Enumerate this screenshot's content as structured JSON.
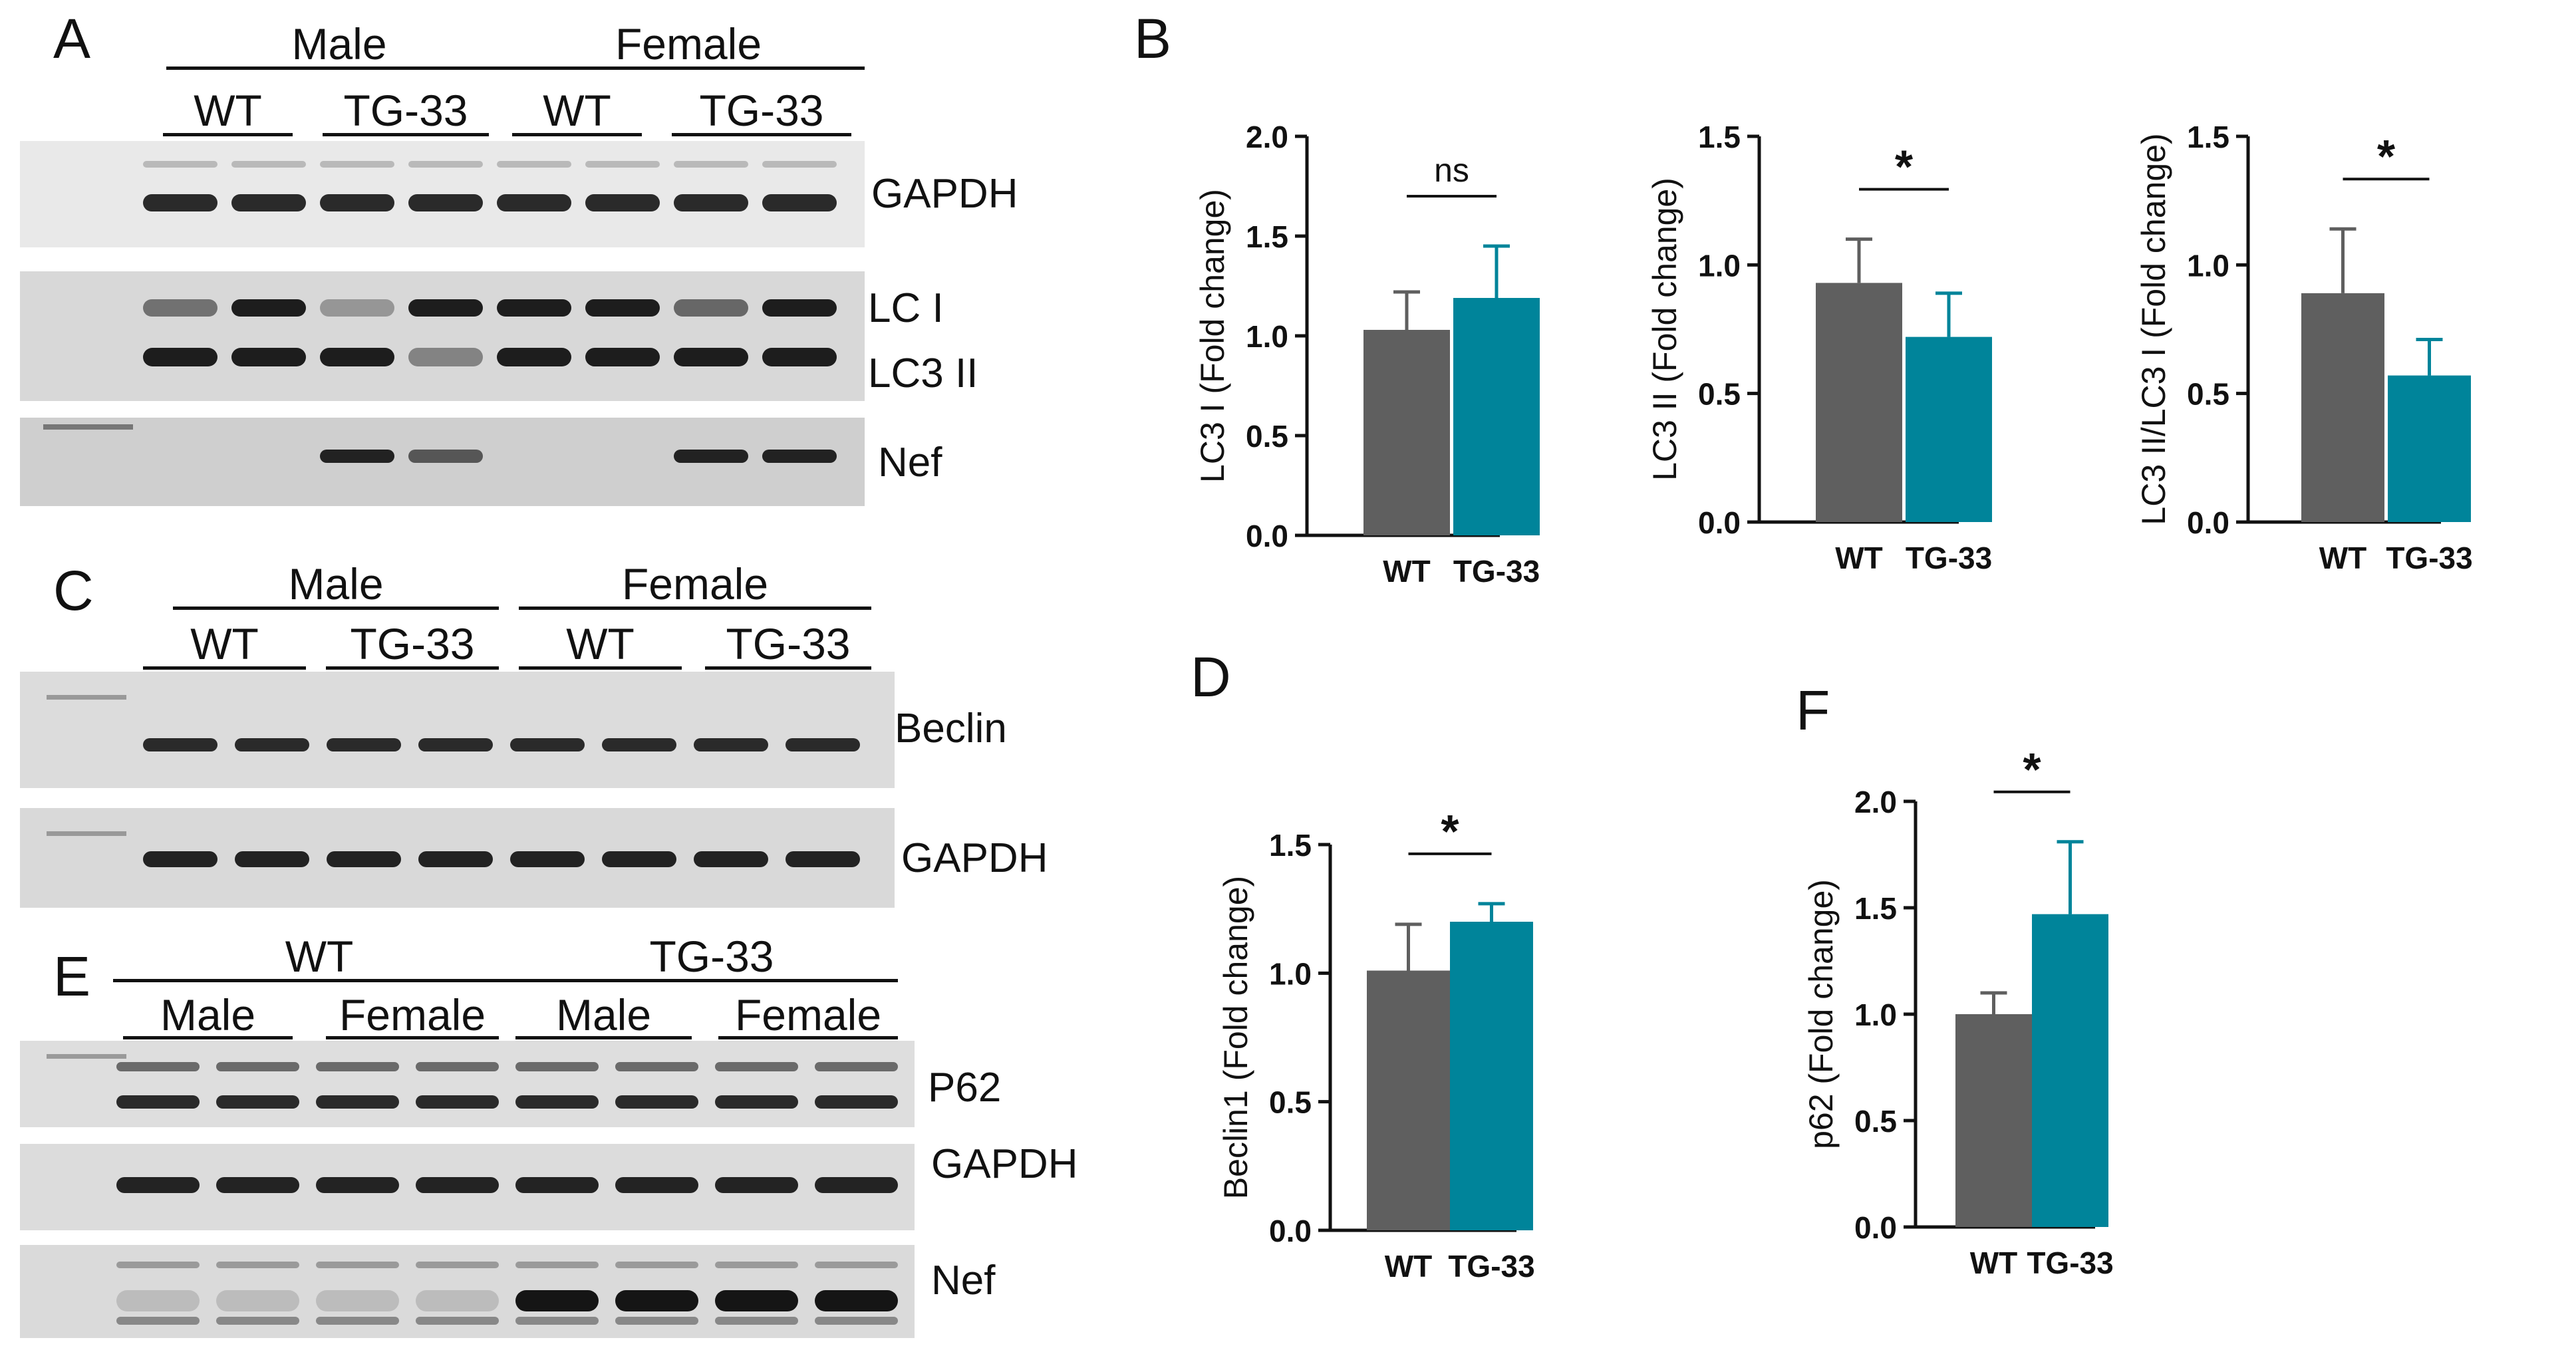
{
  "panels": {
    "A": {
      "letter": "A",
      "sex_headers": [
        "Male",
        "Female"
      ],
      "genotype_headers": [
        "WT",
        "TG-33",
        "WT",
        "TG-33"
      ],
      "blots": [
        "GAPDH",
        "LC I",
        "LC3 II",
        "Nef"
      ]
    },
    "C": {
      "letter": "C",
      "sex_headers": [
        "Male",
        "Female"
      ],
      "genotype_headers": [
        "WT",
        "TG-33",
        "WT",
        "TG-33"
      ],
      "blots": [
        "Beclin",
        "GAPDH"
      ]
    },
    "E": {
      "letter": "E",
      "genotype_headers": [
        "WT",
        "TG-33"
      ],
      "sex_headers": [
        "Male",
        "Female",
        "Male",
        "Female"
      ],
      "blots": [
        "P62",
        "GAPDH",
        "Nef"
      ]
    },
    "B": {
      "letter": "B"
    },
    "D": {
      "letter": "D"
    },
    "F": {
      "letter": "F"
    }
  },
  "colors": {
    "wt": "#5f5f5f",
    "tg": "#00849a",
    "axis": "#111111"
  },
  "chart_data": [
    {
      "id": "B1",
      "type": "bar",
      "categories": [
        "WT",
        "TG-33"
      ],
      "values": [
        1.03,
        1.19
      ],
      "errors": [
        0.19,
        0.26
      ],
      "ylabel": "LC3 I (Fold change)",
      "ylim": [
        0,
        2.0
      ],
      "yticks": [
        "0.0",
        "0.5",
        "1.0",
        "1.5",
        "2.0"
      ],
      "significance": "ns"
    },
    {
      "id": "B2",
      "type": "bar",
      "categories": [
        "WT",
        "TG-33"
      ],
      "values": [
        0.93,
        0.72
      ],
      "errors": [
        0.17,
        0.17
      ],
      "ylabel": "LC3 II (Fold change)",
      "ylim": [
        0,
        1.5
      ],
      "yticks": [
        "0.0",
        "0.5",
        "1.0",
        "1.5"
      ],
      "significance": "*"
    },
    {
      "id": "B3",
      "type": "bar",
      "categories": [
        "WT",
        "TG-33"
      ],
      "values": [
        0.89,
        0.57
      ],
      "errors": [
        0.25,
        0.14
      ],
      "ylabel": "LC3 II/LC3 I (Fold change)",
      "ylim": [
        0,
        1.5
      ],
      "yticks": [
        "0.0",
        "0.5",
        "1.0",
        "1.5"
      ],
      "significance": "*"
    },
    {
      "id": "D",
      "type": "bar",
      "categories": [
        "WT",
        "TG-33"
      ],
      "values": [
        1.01,
        1.2
      ],
      "errors": [
        0.18,
        0.07
      ],
      "ylabel": "Beclin1 (Fold change)",
      "ylim": [
        0,
        1.5
      ],
      "yticks": [
        "0.0",
        "0.5",
        "1.0",
        "1.5"
      ],
      "significance": "*"
    },
    {
      "id": "F",
      "type": "bar",
      "categories": [
        "WT",
        "TG-33"
      ],
      "values": [
        1.0,
        1.47
      ],
      "errors": [
        0.1,
        0.34
      ],
      "ylabel": "p62 (Fold change)",
      "ylim": [
        0,
        2.0
      ],
      "yticks": [
        "0.0",
        "0.5",
        "1.0",
        "1.5",
        "2.0"
      ],
      "significance": "*"
    }
  ]
}
